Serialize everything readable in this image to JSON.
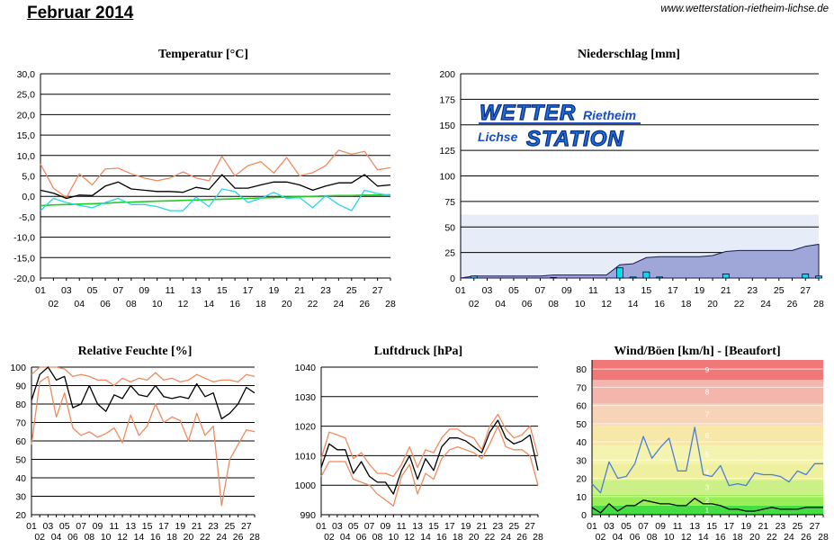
{
  "header": {
    "title": "Februar 2014",
    "url": "www.wetterstation-rietheim-lichse.de"
  },
  "logo": {
    "line1": "WETTER",
    "line1b": "Rietheim",
    "line2": "Lichse",
    "line2b": "STATION"
  },
  "colors": {
    "max_temp": "#f08a5d",
    "mean": "#000000",
    "min_temp": "#2ad4e8",
    "ground": "#22cc22",
    "precip_fill": "#9fa6d8",
    "precip_bar": "#00e0f0",
    "precip_band": "#e6ecf8",
    "wind_line": "#4a7fd6"
  },
  "x_labels": {
    "odd": [
      "01",
      "03",
      "05",
      "07",
      "09",
      "11",
      "13",
      "15",
      "17",
      "19",
      "21",
      "23",
      "25",
      "27"
    ],
    "even": [
      "02",
      "04",
      "06",
      "08",
      "10",
      "12",
      "14",
      "16",
      "18",
      "20",
      "22",
      "24",
      "26",
      "28"
    ]
  },
  "chart_data": [
    {
      "id": "temperature",
      "type": "line",
      "title": "Temperatur [°C]",
      "ylim": [
        -20,
        30
      ],
      "yticks": [
        "30,0",
        "25,0",
        "20,0",
        "15,0",
        "10,0",
        "5,0",
        "0,0",
        "-5,0",
        "-10,0",
        "-15,0",
        "-20,0"
      ],
      "x": [
        1,
        2,
        3,
        4,
        5,
        6,
        7,
        8,
        9,
        10,
        11,
        12,
        13,
        14,
        15,
        16,
        17,
        18,
        19,
        20,
        21,
        22,
        23,
        24,
        25,
        26,
        27,
        28
      ],
      "series": [
        {
          "values": [
            7.9,
            2.0,
            -0.3,
            5.5,
            2.8,
            6.7,
            6.9,
            5.5,
            4.5,
            3.8,
            4.5,
            6.0,
            4.5,
            3.8,
            9.8,
            5.0,
            7.5,
            8.5,
            5.7,
            9.5,
            5.0,
            5.8,
            7.5,
            11.3,
            10.3,
            11.0,
            6.5,
            7.0
          ]
        },
        {
          "values": [
            1.5,
            0.8,
            -0.5,
            0.3,
            0.2,
            2.5,
            3.5,
            1.8,
            1.5,
            1.2,
            1.2,
            1.0,
            2.2,
            1.7,
            5.3,
            2.0,
            2.0,
            2.8,
            3.5,
            3.5,
            2.8,
            1.5,
            2.5,
            3.3,
            3.3,
            5.3,
            2.5,
            2.8
          ]
        },
        {
          "values": [
            -3.5,
            -0.5,
            -1.5,
            -2.2,
            -2.8,
            -1.5,
            -0.5,
            -2.0,
            -2.0,
            -2.5,
            -3.5,
            -3.5,
            -0.2,
            -2.5,
            1.8,
            1.2,
            -1.5,
            -0.5,
            1.0,
            -0.5,
            -0.3,
            -2.8,
            0.2,
            -2.0,
            -3.5,
            1.5,
            0.7,
            0.2
          ]
        },
        {
          "values": [
            -2.3,
            -2.1,
            -2.0,
            -1.9,
            -1.8,
            -1.7,
            -1.5,
            -1.4,
            -1.3,
            -1.2,
            -1.1,
            -1.0,
            -0.9,
            -0.8,
            -0.7,
            -0.6,
            -0.5,
            -0.4,
            -0.3,
            -0.2,
            -0.1,
            0.0,
            0.1,
            0.2,
            0.2,
            0.3,
            0.3,
            0.4
          ]
        }
      ]
    },
    {
      "id": "precipitation",
      "type": "area",
      "title": "Niederschlag [mm]",
      "ylim": [
        0,
        200
      ],
      "yticks": [
        "200",
        "175",
        "150",
        "125",
        "100",
        "75",
        "50",
        "25",
        "0"
      ],
      "x": [
        1,
        2,
        3,
        4,
        5,
        6,
        7,
        8,
        9,
        10,
        11,
        12,
        13,
        14,
        15,
        16,
        17,
        18,
        19,
        20,
        21,
        22,
        23,
        24,
        25,
        26,
        27,
        28
      ],
      "series": [
        {
          "values": [
            0,
            2,
            2,
            2,
            2,
            2,
            2,
            3,
            3,
            3,
            3,
            3,
            13,
            14,
            20,
            21,
            21,
            21,
            21,
            22,
            26,
            27,
            27,
            27,
            27,
            27,
            31,
            33
          ]
        },
        {
          "values": [
            0,
            2,
            0,
            0,
            0,
            0,
            0,
            0.5,
            0,
            0,
            0,
            0,
            10,
            1,
            6,
            1,
            0,
            0,
            0,
            0,
            4,
            0,
            0,
            0,
            0,
            0,
            4,
            2
          ]
        }
      ]
    },
    {
      "id": "humidity",
      "type": "line",
      "title": "Relative Feuchte [%]",
      "ylim": [
        20,
        100
      ],
      "yticks": [
        "100",
        "90",
        "80",
        "70",
        "60",
        "50",
        "40",
        "30",
        "20"
      ],
      "x": [
        1,
        2,
        3,
        4,
        5,
        6,
        7,
        8,
        9,
        10,
        11,
        12,
        13,
        14,
        15,
        16,
        17,
        18,
        19,
        20,
        21,
        22,
        23,
        24,
        25,
        26,
        27,
        28
      ],
      "series": [
        {
          "values": [
            82,
            96,
            100,
            93,
            95,
            78,
            80,
            90,
            80,
            76,
            85,
            83,
            90,
            85,
            84,
            90,
            84,
            83,
            84,
            83,
            91,
            84,
            86,
            72,
            75,
            80,
            89,
            86
          ]
        },
        {
          "values": [
            96,
            100,
            100,
            100,
            99,
            95,
            96,
            95,
            93,
            93,
            90,
            94,
            92,
            94,
            93,
            97,
            93,
            94,
            92,
            93,
            96,
            94,
            92,
            93,
            93,
            92,
            96,
            95
          ]
        },
        {
          "values": [
            58,
            92,
            95,
            73,
            86,
            67,
            63,
            65,
            62,
            64,
            67,
            59,
            74,
            63,
            68,
            80,
            70,
            73,
            71,
            60,
            75,
            63,
            68,
            25,
            50,
            58,
            66,
            65
          ]
        }
      ]
    },
    {
      "id": "pressure",
      "type": "line",
      "title": "Luftdruck [hPa]",
      "ylim": [
        990,
        1040
      ],
      "yticks": [
        "1040",
        "1030",
        "1020",
        "1010",
        "1000",
        "990"
      ],
      "x": [
        1,
        2,
        3,
        4,
        5,
        6,
        7,
        8,
        9,
        10,
        11,
        12,
        13,
        14,
        15,
        16,
        17,
        18,
        19,
        20,
        21,
        22,
        23,
        24,
        25,
        26,
        27,
        28
      ],
      "series": [
        {
          "values": [
            1006,
            1014,
            1012,
            1012,
            1004,
            1008,
            1003,
            1001,
            1001,
            997,
            1005,
            1010,
            1002,
            1009,
            1005,
            1013,
            1016,
            1016,
            1015,
            1013,
            1011,
            1018,
            1022,
            1016,
            1014,
            1015,
            1017,
            1005
          ]
        },
        {
          "values": [
            1009,
            1018,
            1017,
            1016,
            1009,
            1011,
            1007,
            1004,
            1004,
            1003,
            1007,
            1013,
            1006,
            1012,
            1011,
            1016,
            1019,
            1019,
            1017,
            1016,
            1012,
            1020,
            1024,
            1019,
            1016,
            1017,
            1020,
            1010
          ]
        },
        {
          "values": [
            1003,
            1008,
            1008,
            1008,
            1002,
            1001,
            1000,
            997,
            995,
            993,
            1003,
            1007,
            997,
            1004,
            1002,
            1009,
            1012,
            1013,
            1012,
            1011,
            1009,
            1014,
            1020,
            1013,
            1012,
            1012,
            1010,
            1000
          ]
        }
      ]
    },
    {
      "id": "wind",
      "type": "line",
      "title": "Wind/Böen [km/h] - [Beaufort]",
      "ylim": [
        0,
        85
      ],
      "yticks": [
        "80",
        "70",
        "60",
        "50",
        "40",
        "30",
        "20",
        "10",
        "0"
      ],
      "beaufort_labels": [
        "1",
        "2",
        "3",
        "4",
        "5",
        "6",
        "7",
        "8",
        "9"
      ],
      "beaufort_bounds": [
        0,
        5,
        11,
        19,
        28,
        38,
        49,
        61,
        74,
        88
      ],
      "beaufort_colors": [
        "#44dd44",
        "#99ee55",
        "#ccf088",
        "#eef0a0",
        "#f4f4b0",
        "#f8e8a8",
        "#f7d4b8",
        "#f4b6ac",
        "#f07878"
      ],
      "x": [
        1,
        2,
        3,
        4,
        5,
        6,
        7,
        8,
        9,
        10,
        11,
        12,
        13,
        14,
        15,
        16,
        17,
        18,
        19,
        20,
        21,
        22,
        23,
        24,
        25,
        26,
        27,
        28
      ],
      "series": [
        {
          "values": [
            17,
            12,
            29,
            20,
            21,
            28,
            43,
            31,
            37,
            42,
            24,
            24,
            48,
            22,
            21,
            27,
            16,
            17,
            16,
            23,
            22,
            22,
            21,
            18,
            24,
            22,
            28,
            28
          ]
        },
        {
          "values": [
            4,
            1,
            6,
            2,
            5,
            5,
            8,
            7,
            6,
            6,
            5,
            5,
            9,
            6,
            6,
            5,
            3,
            3,
            2,
            2,
            3,
            4,
            3,
            3,
            3,
            4,
            4,
            4
          ]
        }
      ]
    }
  ]
}
